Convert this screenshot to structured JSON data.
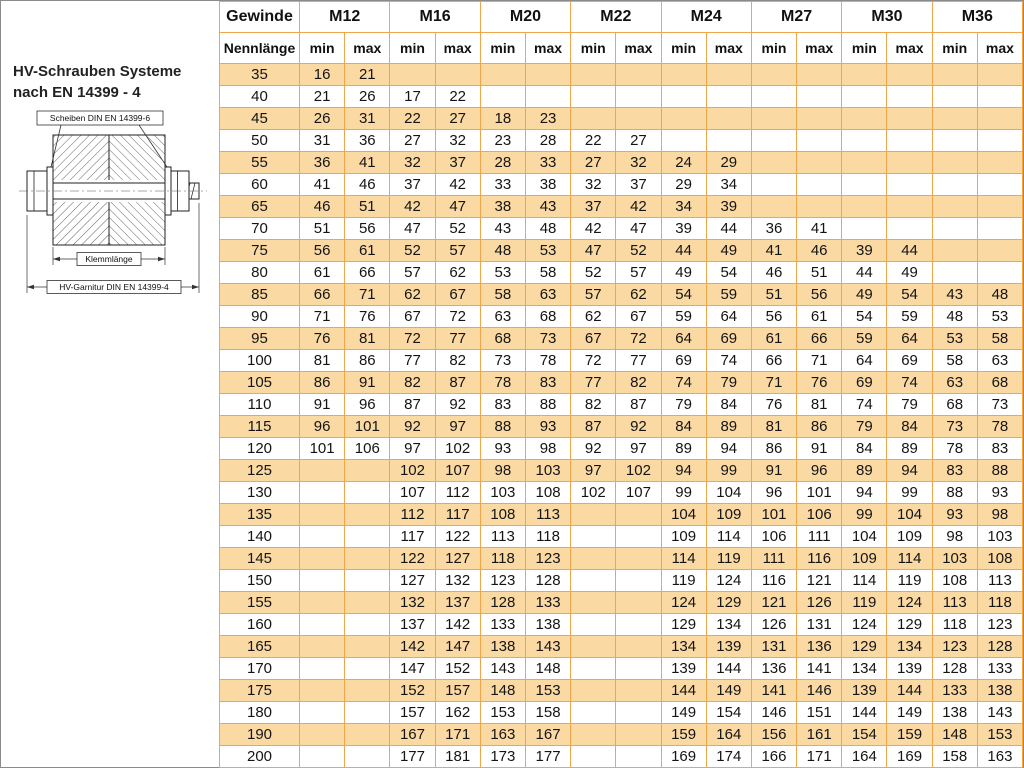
{
  "panel": {
    "title_line1": "HV-Schrauben Systeme",
    "title_line2": "nach EN 14399 - 4",
    "diagram_labels": {
      "washers": "Scheiben DIN EN 14399-6",
      "clamp": "Klemmlänge",
      "set": "HV-Garnitur DIN EN 14399-4"
    }
  },
  "colors": {
    "row_stripe": "#FBD9A3",
    "grid": "#F0A64B"
  },
  "table": {
    "header": {
      "col1_top": "Gewinde",
      "col1_bottom": "Nennlänge",
      "min_label": "min",
      "max_label": "max",
      "threads": [
        "M12",
        "M16",
        "M20",
        "M22",
        "M24",
        "M27",
        "M30",
        "M36"
      ]
    },
    "rows": [
      {
        "len": "35",
        "vals": [
          "16",
          "21",
          "",
          "",
          "",
          "",
          "",
          "",
          "",
          "",
          "",
          "",
          "",
          "",
          "",
          ""
        ]
      },
      {
        "len": "40",
        "vals": [
          "21",
          "26",
          "17",
          "22",
          "",
          "",
          "",
          "",
          "",
          "",
          "",
          "",
          "",
          "",
          "",
          ""
        ]
      },
      {
        "len": "45",
        "vals": [
          "26",
          "31",
          "22",
          "27",
          "18",
          "23",
          "",
          "",
          "",
          "",
          "",
          "",
          "",
          "",
          "",
          ""
        ]
      },
      {
        "len": "50",
        "vals": [
          "31",
          "36",
          "27",
          "32",
          "23",
          "28",
          "22",
          "27",
          "",
          "",
          "",
          "",
          "",
          "",
          "",
          ""
        ]
      },
      {
        "len": "55",
        "vals": [
          "36",
          "41",
          "32",
          "37",
          "28",
          "33",
          "27",
          "32",
          "24",
          "29",
          "",
          "",
          "",
          "",
          "",
          ""
        ]
      },
      {
        "len": "60",
        "vals": [
          "41",
          "46",
          "37",
          "42",
          "33",
          "38",
          "32",
          "37",
          "29",
          "34",
          "",
          "",
          "",
          "",
          "",
          ""
        ]
      },
      {
        "len": "65",
        "vals": [
          "46",
          "51",
          "42",
          "47",
          "38",
          "43",
          "37",
          "42",
          "34",
          "39",
          "",
          "",
          "",
          "",
          "",
          ""
        ]
      },
      {
        "len": "70",
        "vals": [
          "51",
          "56",
          "47",
          "52",
          "43",
          "48",
          "42",
          "47",
          "39",
          "44",
          "36",
          "41",
          "",
          "",
          "",
          ""
        ]
      },
      {
        "len": "75",
        "vals": [
          "56",
          "61",
          "52",
          "57",
          "48",
          "53",
          "47",
          "52",
          "44",
          "49",
          "41",
          "46",
          "39",
          "44",
          "",
          ""
        ]
      },
      {
        "len": "80",
        "vals": [
          "61",
          "66",
          "57",
          "62",
          "53",
          "58",
          "52",
          "57",
          "49",
          "54",
          "46",
          "51",
          "44",
          "49",
          "",
          ""
        ]
      },
      {
        "len": "85",
        "vals": [
          "66",
          "71",
          "62",
          "67",
          "58",
          "63",
          "57",
          "62",
          "54",
          "59",
          "51",
          "56",
          "49",
          "54",
          "43",
          "48"
        ]
      },
      {
        "len": "90",
        "vals": [
          "71",
          "76",
          "67",
          "72",
          "63",
          "68",
          "62",
          "67",
          "59",
          "64",
          "56",
          "61",
          "54",
          "59",
          "48",
          "53"
        ]
      },
      {
        "len": "95",
        "vals": [
          "76",
          "81",
          "72",
          "77",
          "68",
          "73",
          "67",
          "72",
          "64",
          "69",
          "61",
          "66",
          "59",
          "64",
          "53",
          "58"
        ]
      },
      {
        "len": "100",
        "vals": [
          "81",
          "86",
          "77",
          "82",
          "73",
          "78",
          "72",
          "77",
          "69",
          "74",
          "66",
          "71",
          "64",
          "69",
          "58",
          "63"
        ]
      },
      {
        "len": "105",
        "vals": [
          "86",
          "91",
          "82",
          "87",
          "78",
          "83",
          "77",
          "82",
          "74",
          "79",
          "71",
          "76",
          "69",
          "74",
          "63",
          "68"
        ]
      },
      {
        "len": "110",
        "vals": [
          "91",
          "96",
          "87",
          "92",
          "83",
          "88",
          "82",
          "87",
          "79",
          "84",
          "76",
          "81",
          "74",
          "79",
          "68",
          "73"
        ]
      },
      {
        "len": "115",
        "vals": [
          "96",
          "101",
          "92",
          "97",
          "88",
          "93",
          "87",
          "92",
          "84",
          "89",
          "81",
          "86",
          "79",
          "84",
          "73",
          "78"
        ]
      },
      {
        "len": "120",
        "vals": [
          "101",
          "106",
          "97",
          "102",
          "93",
          "98",
          "92",
          "97",
          "89",
          "94",
          "86",
          "91",
          "84",
          "89",
          "78",
          "83"
        ]
      },
      {
        "len": "125",
        "vals": [
          "",
          "",
          "102",
          "107",
          "98",
          "103",
          "97",
          "102",
          "94",
          "99",
          "91",
          "96",
          "89",
          "94",
          "83",
          "88"
        ]
      },
      {
        "len": "130",
        "vals": [
          "",
          "",
          "107",
          "112",
          "103",
          "108",
          "102",
          "107",
          "99",
          "104",
          "96",
          "101",
          "94",
          "99",
          "88",
          "93"
        ]
      },
      {
        "len": "135",
        "vals": [
          "",
          "",
          "112",
          "117",
          "108",
          "113",
          "",
          "",
          "104",
          "109",
          "101",
          "106",
          "99",
          "104",
          "93",
          "98"
        ]
      },
      {
        "len": "140",
        "vals": [
          "",
          "",
          "117",
          "122",
          "113",
          "118",
          "",
          "",
          "109",
          "114",
          "106",
          "111",
          "104",
          "109",
          "98",
          "103"
        ]
      },
      {
        "len": "145",
        "vals": [
          "",
          "",
          "122",
          "127",
          "118",
          "123",
          "",
          "",
          "114",
          "119",
          "111",
          "116",
          "109",
          "114",
          "103",
          "108"
        ]
      },
      {
        "len": "150",
        "vals": [
          "",
          "",
          "127",
          "132",
          "123",
          "128",
          "",
          "",
          "119",
          "124",
          "116",
          "121",
          "114",
          "119",
          "108",
          "113"
        ]
      },
      {
        "len": "155",
        "vals": [
          "",
          "",
          "132",
          "137",
          "128",
          "133",
          "",
          "",
          "124",
          "129",
          "121",
          "126",
          "119",
          "124",
          "113",
          "118"
        ]
      },
      {
        "len": "160",
        "vals": [
          "",
          "",
          "137",
          "142",
          "133",
          "138",
          "",
          "",
          "129",
          "134",
          "126",
          "131",
          "124",
          "129",
          "118",
          "123"
        ]
      },
      {
        "len": "165",
        "vals": [
          "",
          "",
          "142",
          "147",
          "138",
          "143",
          "",
          "",
          "134",
          "139",
          "131",
          "136",
          "129",
          "134",
          "123",
          "128"
        ]
      },
      {
        "len": "170",
        "vals": [
          "",
          "",
          "147",
          "152",
          "143",
          "148",
          "",
          "",
          "139",
          "144",
          "136",
          "141",
          "134",
          "139",
          "128",
          "133"
        ]
      },
      {
        "len": "175",
        "vals": [
          "",
          "",
          "152",
          "157",
          "148",
          "153",
          "",
          "",
          "144",
          "149",
          "141",
          "146",
          "139",
          "144",
          "133",
          "138"
        ]
      },
      {
        "len": "180",
        "vals": [
          "",
          "",
          "157",
          "162",
          "153",
          "158",
          "",
          "",
          "149",
          "154",
          "146",
          "151",
          "144",
          "149",
          "138",
          "143"
        ]
      },
      {
        "len": "190",
        "vals": [
          "",
          "",
          "167",
          "171",
          "163",
          "167",
          "",
          "",
          "159",
          "164",
          "156",
          "161",
          "154",
          "159",
          "148",
          "153"
        ]
      },
      {
        "len": "200",
        "vals": [
          "",
          "",
          "177",
          "181",
          "173",
          "177",
          "",
          "",
          "169",
          "174",
          "166",
          "171",
          "164",
          "169",
          "158",
          "163"
        ]
      }
    ]
  }
}
